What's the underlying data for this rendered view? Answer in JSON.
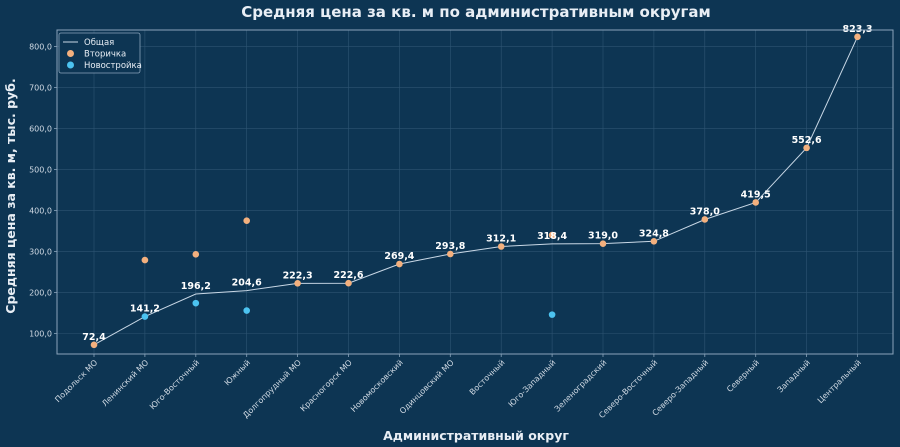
{
  "chart_data": {
    "type": "line",
    "title": "Средняя цена за кв. м по административным округам",
    "xlabel": "Административный округ",
    "ylabel": "Средняя цена за кв. м, тыс. руб.",
    "ylim": [
      50,
      840
    ],
    "yticks": [
      100,
      200,
      300,
      400,
      500,
      600,
      700,
      800
    ],
    "ytick_labels": [
      "100,0",
      "200,0",
      "300,0",
      "400,0",
      "500,0",
      "600,0",
      "700,0",
      "800,0"
    ],
    "grid": true,
    "legend_position": "top-left",
    "categories": [
      "Подольск МО",
      "Ленинский МО",
      "Юго-Восточный",
      "Южный",
      "Долгопрудный МО",
      "Красногорск МО",
      "Новомосковский",
      "Одинцовский МО",
      "Восточный",
      "Юго-Западный",
      "Зеленоградский",
      "Северо-Восточный",
      "Северо-Западный",
      "Северный",
      "Западный",
      "Центральный"
    ],
    "series": [
      {
        "name": "Общая",
        "kind": "line",
        "color": "#c9d8e6",
        "values": [
          72.4,
          141.2,
          196.2,
          204.6,
          222.3,
          222.6,
          269.4,
          293.8,
          312.1,
          318.4,
          319.0,
          324.8,
          378.0,
          419.5,
          552.6,
          823.3
        ],
        "labels": [
          "72,4",
          "141,2",
          "196,2",
          "204,6",
          "222,3",
          "222,6",
          "269,4",
          "293,8",
          "312,1",
          "318,4",
          "319,0",
          "324,8",
          "378,0",
          "419,5",
          "552,6",
          "823,3"
        ]
      },
      {
        "name": "Вторичка",
        "kind": "scatter",
        "color": "#f3b07e",
        "values": [
          72.4,
          279.0,
          293.0,
          375.0,
          222.3,
          222.6,
          269.4,
          293.8,
          312.1,
          340.0,
          319.0,
          324.8,
          378.0,
          419.5,
          552.6,
          823.3
        ]
      },
      {
        "name": "Новостройка",
        "kind": "scatter",
        "color": "#4cc3f0",
        "values": [
          null,
          141.2,
          174.0,
          156.0,
          null,
          null,
          null,
          null,
          null,
          146.0,
          null,
          null,
          null,
          null,
          null,
          null
        ]
      }
    ]
  }
}
